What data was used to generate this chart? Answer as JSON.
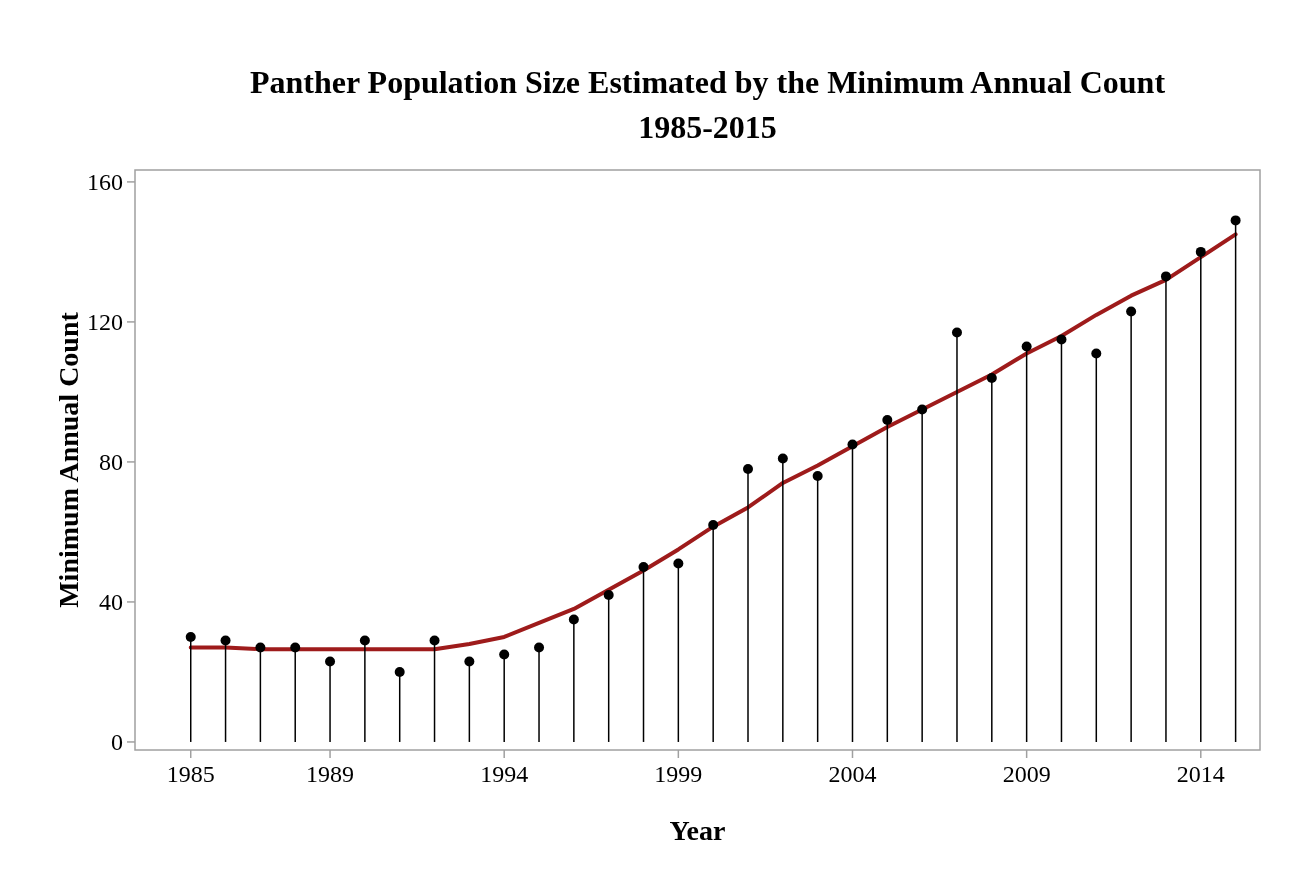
{
  "chart_data": {
    "type": "lollipop",
    "title": "Panther Population Size Estimated by the Minimum Annual Count\n1985-2015",
    "xlabel": "Year",
    "ylabel": "Minimum Annual Count",
    "x": [
      1985,
      1986,
      1987,
      1988,
      1989,
      1990,
      1991,
      1992,
      1993,
      1994,
      1995,
      1996,
      1997,
      1998,
      1999,
      2000,
      2001,
      2002,
      2003,
      2004,
      2005,
      2006,
      2007,
      2008,
      2009,
      2010,
      2011,
      2012,
      2013,
      2014,
      2015
    ],
    "series": [
      {
        "marker": "circle",
        "color": "#000000",
        "values": [
          30,
          29,
          27,
          27,
          23,
          29,
          20,
          29,
          23,
          25,
          27,
          35,
          42,
          50,
          51,
          62,
          78,
          81,
          76,
          85,
          92,
          95,
          117,
          104,
          113,
          115,
          111,
          123,
          133,
          140,
          149
        ]
      },
      {
        "type": "line",
        "marker": "none",
        "color": "#9e1b1b",
        "values": [
          27,
          27,
          26.5,
          26.5,
          26.5,
          26.5,
          26.5,
          26.5,
          28,
          30,
          34,
          38,
          43.5,
          49,
          55,
          61.5,
          67,
          74,
          79,
          84.5,
          90,
          95,
          100,
          105,
          111,
          116,
          122,
          127.5,
          132,
          138.5,
          145
        ]
      }
    ],
    "xlim": [
      1983.4,
      2015.7
    ],
    "ylim": [
      -2.3,
      163.4
    ],
    "xticks": [
      1985,
      1989,
      1994,
      1999,
      2004,
      2009,
      2014
    ],
    "yticks": [
      0,
      40,
      80,
      120,
      160
    ],
    "line_style": "solid"
  }
}
